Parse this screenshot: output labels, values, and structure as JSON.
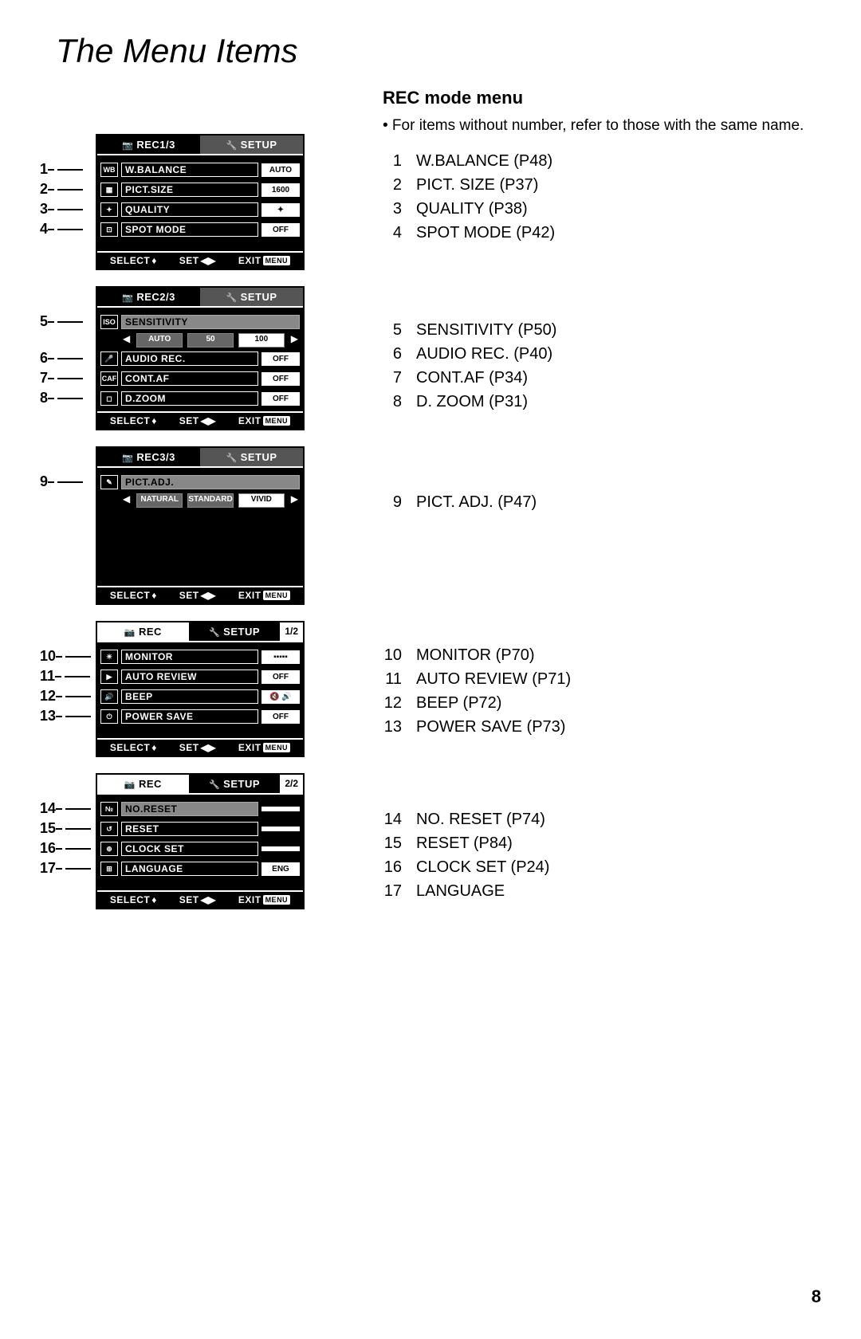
{
  "page": {
    "title": "The Menu Items",
    "number": "8"
  },
  "right": {
    "heading": "REC mode menu",
    "note": "• For items without number, refer to those with the same name.",
    "groups": [
      [
        {
          "n": "1",
          "t": "W.BALANCE (P48)"
        },
        {
          "n": "2",
          "t": "PICT. SIZE (P37)"
        },
        {
          "n": "3",
          "t": "QUALITY (P38)"
        },
        {
          "n": "4",
          "t": "SPOT MODE (P42)"
        }
      ],
      [
        {
          "n": "5",
          "t": "SENSITIVITY (P50)"
        },
        {
          "n": "6",
          "t": "AUDIO REC. (P40)"
        },
        {
          "n": "7",
          "t": "CONT.AF (P34)"
        },
        {
          "n": "8",
          "t": "D. ZOOM (P31)"
        }
      ],
      [
        {
          "n": "9",
          "t": "PICT. ADJ. (P47)"
        }
      ],
      [
        {
          "n": "10",
          "t": "MONITOR (P70)"
        },
        {
          "n": "11",
          "t": "AUTO REVIEW (P71)"
        },
        {
          "n": "12",
          "t": "BEEP (P72)"
        },
        {
          "n": "13",
          "t": "POWER SAVE (P73)"
        }
      ],
      [
        {
          "n": "14",
          "t": "NO. RESET (P74)"
        },
        {
          "n": "15",
          "t": "RESET (P84)"
        },
        {
          "n": "16",
          "t": "CLOCK SET (P24)"
        },
        {
          "n": "17",
          "t": "LANGUAGE"
        }
      ]
    ]
  },
  "screens": [
    {
      "tabs": {
        "left": "REC1/3",
        "right": "SETUP",
        "active": "left"
      },
      "rows": [
        {
          "num": "1",
          "icon": "WB",
          "label": "W.BALANCE",
          "value": "AUTO"
        },
        {
          "num": "2",
          "icon": "▦",
          "label": "PICT.SIZE",
          "value": "1600"
        },
        {
          "num": "3",
          "icon": "✦",
          "label": "QUALITY",
          "value": "✦"
        },
        {
          "num": "4",
          "icon": "⊡",
          "label": "SPOT MODE",
          "value": "OFF"
        }
      ],
      "footer": {
        "a": "SELECT",
        "b": "SET",
        "c": "EXIT"
      }
    },
    {
      "tabs": {
        "left": "REC2/3",
        "right": "SETUP",
        "active": "left"
      },
      "rows": [
        {
          "num": "5",
          "icon": "ISO",
          "label": "SENSITIVITY",
          "highlight": true,
          "sub": [
            "AUTO",
            "50",
            "100"
          ]
        },
        {
          "num": "6",
          "icon": "🎤",
          "label": "AUDIO REC.",
          "value": "OFF"
        },
        {
          "num": "7",
          "icon": "CAF",
          "label": "CONT.AF",
          "value": "OFF"
        },
        {
          "num": "8",
          "icon": "◻",
          "label": "D.ZOOM",
          "value": "OFF"
        }
      ],
      "footer": {
        "a": "SELECT",
        "b": "SET",
        "c": "EXIT"
      }
    },
    {
      "tabs": {
        "left": "REC3/3",
        "right": "SETUP",
        "active": "left"
      },
      "rows": [
        {
          "num": "9",
          "icon": "✎",
          "label": "PICT.ADJ.",
          "highlight": true,
          "sub": [
            "NATURAL",
            "STANDARD",
            "VIVID"
          ]
        }
      ],
      "footer": {
        "a": "SELECT",
        "b": "SET",
        "c": "EXIT"
      },
      "tall": true
    },
    {
      "tabs": {
        "left": "REC",
        "right": "SETUP",
        "extra": "1/2",
        "active": "right"
      },
      "rows": [
        {
          "num": "10",
          "icon": "☀",
          "label": "MONITOR",
          "value": "▪▪▪▪▪"
        },
        {
          "num": "11",
          "icon": "▶",
          "label": "AUTO REVIEW",
          "value": "OFF"
        },
        {
          "num": "12",
          "icon": "🔊",
          "label": "BEEP",
          "value": "🔇 🔊"
        },
        {
          "num": "13",
          "icon": "⏻",
          "label": "POWER SAVE",
          "value": "OFF"
        }
      ],
      "footer": {
        "a": "SELECT",
        "b": "SET",
        "c": "EXIT"
      }
    },
    {
      "tabs": {
        "left": "REC",
        "right": "SETUP",
        "extra": "2/2",
        "active": "right"
      },
      "rows": [
        {
          "num": "14",
          "icon": "№",
          "label": "NO.RESET",
          "highlight": true,
          "value": ""
        },
        {
          "num": "15",
          "icon": "↺",
          "label": "RESET",
          "value": ""
        },
        {
          "num": "16",
          "icon": "⊕",
          "label": "CLOCK SET",
          "value": ""
        },
        {
          "num": "17",
          "icon": "⊞",
          "label": "LANGUAGE",
          "value": "ENG"
        }
      ],
      "footer": {
        "a": "SELECT",
        "b": "SET",
        "c": "EXIT"
      }
    }
  ]
}
